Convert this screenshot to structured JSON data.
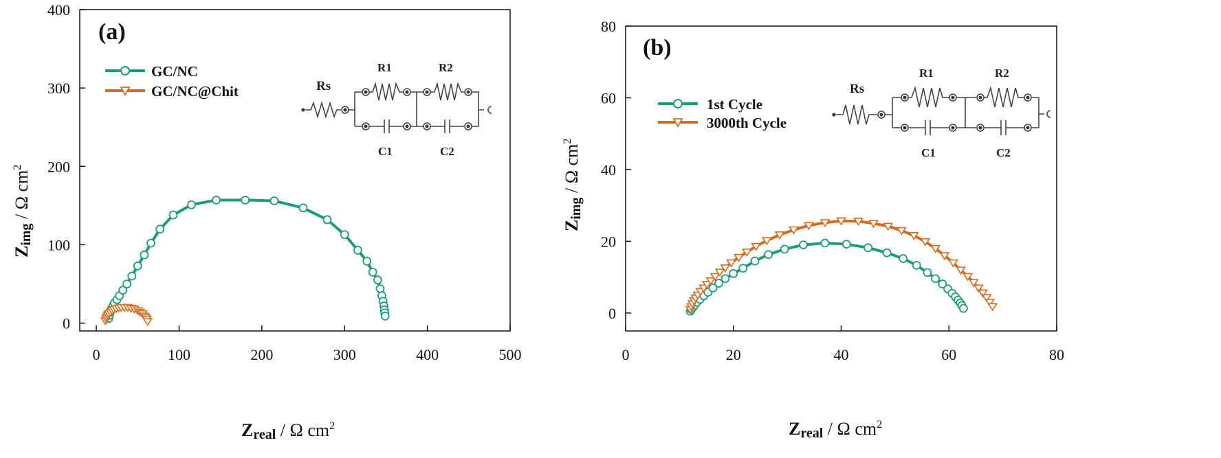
{
  "chart_data": [
    {
      "panel": "(a)",
      "type": "scatter",
      "xlabel": "Zreal / Ω cm2",
      "ylabel": "Zimg / Ω cm2",
      "xlim": [
        -20,
        500
      ],
      "ylim": [
        -10,
        400
      ],
      "xticks": [
        0,
        100,
        200,
        300,
        400,
        500
      ],
      "yticks": [
        0,
        100,
        200,
        300,
        400
      ],
      "legend_position": "top-left",
      "circuit": {
        "labels": [
          "Rs",
          "R1",
          "R2",
          "C1",
          "C2"
        ]
      },
      "series": [
        {
          "name": "GC/NC",
          "color": "#1a9c7d",
          "marker": "circle",
          "x": [
            15,
            16,
            17,
            18,
            20,
            22,
            25,
            28,
            32,
            37,
            43,
            50,
            58,
            66,
            77,
            93,
            115,
            145,
            180,
            215,
            250,
            279,
            300,
            316,
            327,
            334,
            340,
            343,
            345,
            346.5,
            347.5,
            348,
            348.5,
            349
          ],
          "y": [
            6,
            10,
            14,
            18,
            22,
            26,
            30,
            35,
            42,
            50,
            60,
            73,
            87,
            102,
            120,
            138,
            151,
            157,
            157,
            156,
            147,
            132,
            113,
            93,
            79,
            65,
            55,
            44,
            35,
            28,
            22,
            17,
            13,
            9
          ]
        },
        {
          "name": "GC/NC@Chit",
          "color": "#d86a1c",
          "marker": "triangle-down",
          "x": [
            11,
            12,
            13,
            14,
            15,
            17,
            19,
            21,
            24,
            27,
            30,
            34,
            38,
            42,
            46,
            50,
            53,
            56,
            58,
            60,
            61,
            62
          ],
          "y": [
            3,
            6,
            8,
            10,
            12,
            14,
            16,
            17.5,
            18.5,
            19.5,
            20,
            20,
            20,
            19,
            18,
            16,
            14,
            12,
            9,
            7,
            5,
            2
          ]
        }
      ]
    },
    {
      "panel": "(b)",
      "type": "scatter",
      "xlabel": "Zreal / Ω cm2",
      "ylabel": "Zimg / Ω cm2",
      "xlim": [
        0,
        80
      ],
      "ylim": [
        -5,
        80
      ],
      "xticks": [
        0,
        20,
        40,
        60,
        80
      ],
      "yticks": [
        0,
        20,
        40,
        60,
        80
      ],
      "legend_position": "top-left",
      "circuit": {
        "labels": [
          "Rs",
          "R1",
          "R2",
          "C1",
          "C2"
        ]
      },
      "series": [
        {
          "name": "1st Cycle",
          "color": "#1a9c7d",
          "marker": "circle",
          "x": [
            12,
            12.2,
            12.5,
            12.8,
            13.2,
            13.8,
            14.5,
            15.3,
            16.2,
            17.3,
            18.5,
            20,
            21.8,
            24,
            26.5,
            29.5,
            33,
            37,
            41,
            45,
            48.5,
            51.5,
            54,
            56,
            57.5,
            58.8,
            59.8,
            60.6,
            61.2,
            61.7,
            62.1,
            62.4,
            62.7
          ],
          "y": [
            0.5,
            1,
            1.6,
            2.2,
            3,
            3.8,
            4.8,
            5.8,
            7,
            8.3,
            9.6,
            11,
            12.5,
            14.5,
            16.3,
            17.8,
            19,
            19.5,
            19.2,
            18.2,
            16.8,
            15.2,
            13.3,
            11.3,
            9.6,
            8.1,
            6.7,
            5.5,
            4.5,
            3.6,
            2.8,
            2.1,
            1.3
          ]
        },
        {
          "name": "3000th Cycle",
          "color": "#d86a1c",
          "marker": "triangle-down",
          "x": [
            12,
            12.2,
            12.4,
            12.7,
            13,
            13.4,
            13.9,
            14.5,
            15.1,
            15.8,
            16.6,
            17.5,
            18.5,
            19.6,
            21,
            22.5,
            24.2,
            26.2,
            28.6,
            31.2,
            34,
            37,
            40,
            43.2,
            46,
            48.7,
            51.2,
            53.5,
            55.6,
            57.5,
            59.2,
            60.8,
            62.2,
            63.5,
            64.6,
            65.5,
            66.3,
            67,
            67.6,
            68.1
          ],
          "y": [
            1,
            1.8,
            2.6,
            3.4,
            4.2,
            5,
            6,
            7,
            8,
            9,
            10.2,
            11.4,
            12.6,
            14,
            15.5,
            17,
            18.6,
            20.2,
            21.8,
            23.2,
            24.4,
            25.2,
            25.7,
            25.6,
            25,
            24.2,
            23,
            21.6,
            19.9,
            18,
            16,
            14,
            12,
            10.2,
            8.5,
            7,
            5.6,
            4.3,
            3,
            1.8
          ]
        }
      ]
    }
  ]
}
